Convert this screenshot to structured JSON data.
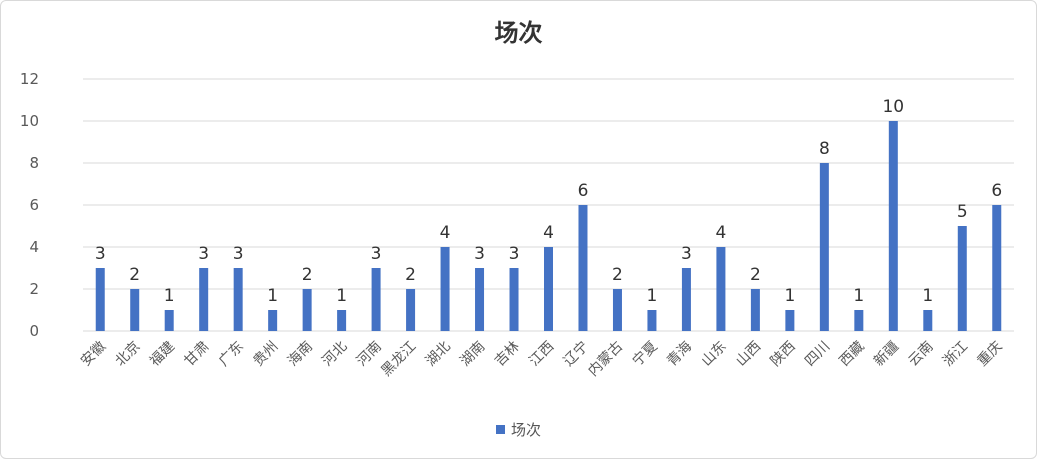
{
  "chart_data": {
    "type": "bar",
    "title": "场次",
    "categories": [
      "安徽",
      "北京",
      "福建",
      "甘肃",
      "广东",
      "贵州",
      "海南",
      "河北",
      "河南",
      "黑龙江",
      "湖北",
      "湖南",
      "吉林",
      "江西",
      "辽宁",
      "内蒙古",
      "宁夏",
      "青海",
      "山东",
      "山西",
      "陕西",
      "四川",
      "西藏",
      "新疆",
      "云南",
      "浙江",
      "重庆"
    ],
    "series": [
      {
        "name": "场次",
        "values": [
          3,
          2,
          1,
          3,
          3,
          1,
          2,
          1,
          3,
          2,
          4,
          3,
          3,
          4,
          6,
          2,
          1,
          3,
          4,
          2,
          1,
          8,
          1,
          10,
          1,
          5,
          6
        ]
      }
    ],
    "ylim": [
      0,
      12
    ],
    "yticks": [
      0,
      2,
      4,
      6,
      8,
      10,
      12
    ],
    "grid": true,
    "legend_position": "bottom",
    "colors": {
      "bar": "#4472C4",
      "grid": "#d9d9d9",
      "text": "#595959",
      "label": "#333333"
    }
  }
}
